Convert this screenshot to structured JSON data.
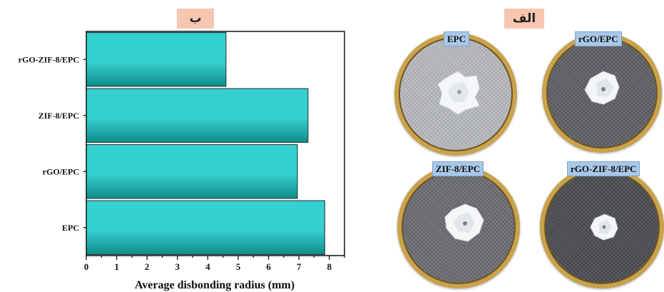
{
  "panel_labels": {
    "chart": "ب",
    "photos": "الف"
  },
  "chart_data": {
    "type": "bar",
    "orientation": "horizontal",
    "categories": [
      "rGO-ZIF-8/EPC",
      "ZIF-8/EPC",
      "rGO/EPC",
      "EPC"
    ],
    "values": [
      4.6,
      7.3,
      6.95,
      7.85
    ],
    "xlabel": "Average disbonding radius (mm)",
    "ylabel": "",
    "xlim": [
      0,
      8.5
    ],
    "xticks": [
      "0",
      "1",
      "2",
      "3",
      "4",
      "5",
      "6",
      "7",
      "8"
    ],
    "bar_color_light": "#35d0d0",
    "bar_color_dark": "#0f8c8c",
    "grid": false
  },
  "photos": [
    {
      "label": "EPC",
      "surface": "#b9bcc0"
    },
    {
      "label": "rGO/EPC",
      "surface": "#5e6064"
    },
    {
      "label": "ZIF-8/EPC",
      "surface": "#6b6d72"
    },
    {
      "label": "rGO-ZIF-8/EPC",
      "surface": "#4a4c50"
    }
  ],
  "colors": {
    "rim": "#c9a24a",
    "label_bg": "#a9c8e8",
    "tag_bg": "#f7c6b0"
  }
}
